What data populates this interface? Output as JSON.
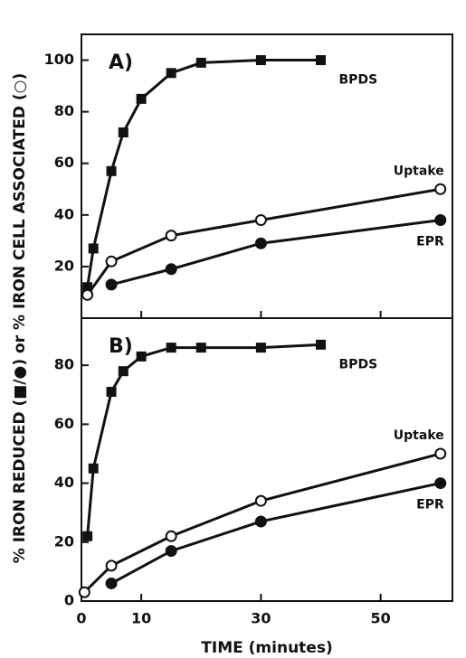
{
  "y_label": "% IRON REDUCED (■/●) or % IRON CELL ASSOCIATED (○)",
  "chart_data": [
    {
      "type": "line",
      "panel_label": "A)",
      "xlim": [
        0,
        62
      ],
      "ylim": [
        0,
        110
      ],
      "yticks": [
        20,
        40,
        60,
        80,
        100
      ],
      "series": [
        {
          "name": "BPDS",
          "marker": "square",
          "color": "#111111",
          "x": [
            1,
            2,
            5,
            7,
            10,
            15,
            20,
            30,
            40
          ],
          "values": [
            12,
            27,
            57,
            72,
            85,
            95,
            99,
            100,
            100
          ]
        },
        {
          "name": "Uptake",
          "marker": "open-circle",
          "color": "#111111",
          "x": [
            1,
            5,
            15,
            30,
            60
          ],
          "values": [
            9,
            22,
            32,
            38,
            50
          ]
        },
        {
          "name": "EPR",
          "marker": "circle",
          "color": "#111111",
          "x": [
            5,
            15,
            30,
            60
          ],
          "values": [
            13,
            19,
            29,
            38
          ]
        }
      ]
    },
    {
      "type": "line",
      "panel_label": "B)",
      "x_label": "TIME (minutes)",
      "xlim": [
        0,
        62
      ],
      "ylim": [
        0,
        96
      ],
      "xticks": [
        0,
        10,
        30,
        50
      ],
      "yticks": [
        0,
        20,
        40,
        60,
        80
      ],
      "series": [
        {
          "name": "BPDS",
          "marker": "square",
          "color": "#111111",
          "x": [
            1,
            2,
            5,
            7,
            10,
            15,
            20,
            30,
            40
          ],
          "values": [
            22,
            45,
            71,
            78,
            83,
            86,
            86,
            86,
            87
          ]
        },
        {
          "name": "Uptake",
          "marker": "open-circle",
          "color": "#111111",
          "x": [
            0.5,
            5,
            15,
            30,
            60
          ],
          "values": [
            3,
            12,
            22,
            34,
            50
          ]
        },
        {
          "name": "EPR",
          "marker": "circle",
          "color": "#111111",
          "x": [
            5,
            15,
            30,
            60
          ],
          "values": [
            6,
            17,
            27,
            40
          ]
        }
      ]
    }
  ]
}
